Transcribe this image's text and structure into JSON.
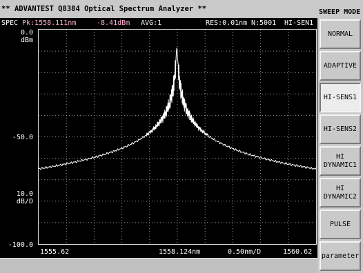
{
  "title_bar": {
    "text": "** ADVANTEST Q8384 Optical Spectrum Analyzer **"
  },
  "info_bar": {
    "mode": "SPEC",
    "peak": "Pk:1558.111nm",
    "level": "-8.41dBm",
    "avg": "AVG:1",
    "res": "RES:0.01nm",
    "points": "N:5001",
    "sens": "HI-SEN1",
    "peak_color": "#ffb0d6"
  },
  "y_axis": {
    "top": "0.0",
    "top_unit": "dBm",
    "mid": "-50.0",
    "scale": "10.0",
    "scale_unit": "dB/D",
    "bottom": "-100.0"
  },
  "x_axis": {
    "start": "1555.62",
    "center": "1558.124nm",
    "span": "0.50nm/D",
    "end": "1560.62"
  },
  "sidebar": {
    "title": "SWEEP MODE",
    "buttons": [
      {
        "label": "NORMAL",
        "active": false
      },
      {
        "label": "ADAPTIVE",
        "active": false
      },
      {
        "label": "HI-SENS1",
        "active": true
      },
      {
        "label": "HI-SENS2",
        "active": false
      },
      {
        "label": "HI\nDYNAMIC1",
        "active": false
      },
      {
        "label": "HI\nDYNAMIC2",
        "active": false
      },
      {
        "label": "PULSE",
        "active": false
      },
      {
        "label": "parameter",
        "active": false
      }
    ]
  },
  "colors": {
    "trace": "#ffffff",
    "grid": "#9a9a9a",
    "screen": "#000000",
    "panel": "#c9c9c9"
  }
}
